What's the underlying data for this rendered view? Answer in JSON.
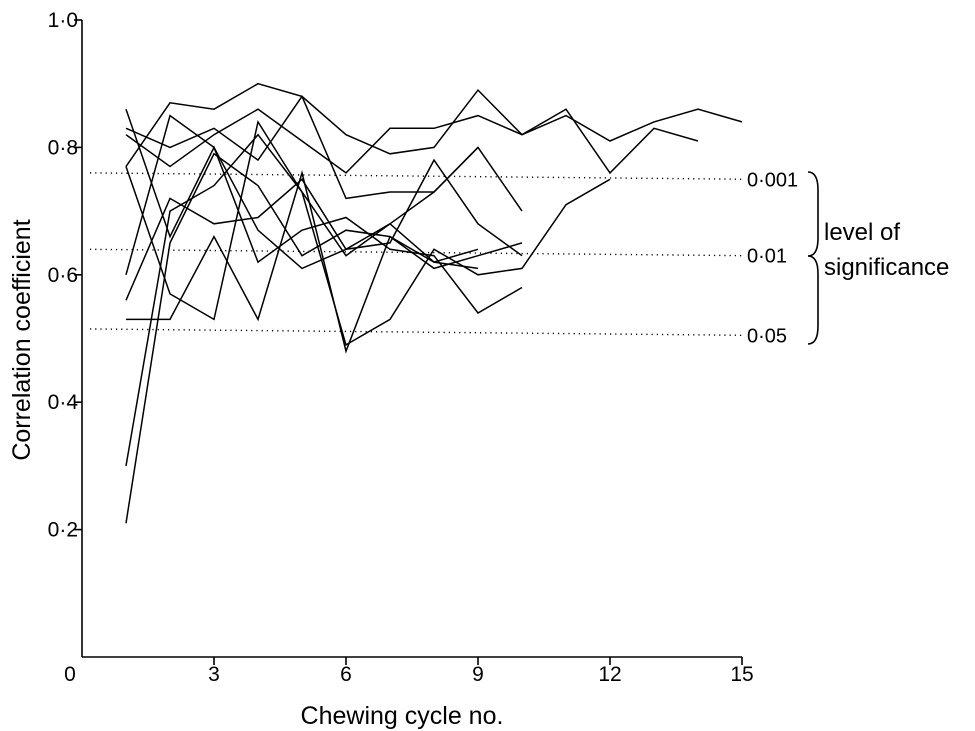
{
  "chart_data": {
    "type": "line",
    "title": "",
    "xlabel": "Chewing cycle no.",
    "ylabel": "Correlation coefficient",
    "xlim": [
      0,
      15
    ],
    "ylim": [
      0,
      1.0
    ],
    "x_ticks": [
      {
        "value": 0,
        "label": "0"
      },
      {
        "value": 3,
        "label": "3"
      },
      {
        "value": 6,
        "label": "6"
      },
      {
        "value": 9,
        "label": "9"
      },
      {
        "value": 12,
        "label": "12"
      },
      {
        "value": 15,
        "label": "15"
      }
    ],
    "y_ticks": [
      {
        "value": 0.2,
        "label": "0·2"
      },
      {
        "value": 0.4,
        "label": "0·4"
      },
      {
        "value": 0.6,
        "label": "0·6"
      },
      {
        "value": 0.8,
        "label": "0·8"
      },
      {
        "value": 1.0,
        "label": "1·0"
      }
    ],
    "significance_levels": [
      {
        "label": "0·001",
        "y_start": 0.76,
        "y_end": 0.75
      },
      {
        "label": "0·01",
        "y_start": 0.64,
        "y_end": 0.63
      },
      {
        "label": "0·05",
        "y_start": 0.515,
        "y_end": 0.505
      }
    ],
    "significance_title": [
      "level of",
      "significance"
    ],
    "series": [
      {
        "x": [
          1,
          2,
          3,
          4,
          5,
          6,
          7,
          8,
          9,
          10,
          11,
          12,
          13,
          14,
          15
        ],
        "values": [
          0.82,
          0.77,
          0.82,
          0.86,
          0.81,
          0.76,
          0.83,
          0.83,
          0.85,
          0.82,
          0.85,
          0.81,
          0.84,
          0.86,
          0.84
        ]
      },
      {
        "x": [
          1,
          2,
          3,
          4,
          5,
          6,
          7,
          8,
          9,
          10,
          11,
          12,
          13,
          14
        ],
        "values": [
          0.83,
          0.8,
          0.83,
          0.78,
          0.88,
          0.82,
          0.79,
          0.8,
          0.89,
          0.82,
          0.86,
          0.76,
          0.83,
          0.81
        ]
      },
      {
        "x": [
          1,
          2,
          3,
          4,
          5,
          6,
          7,
          8,
          9,
          10
        ],
        "values": [
          0.86,
          0.66,
          0.8,
          0.62,
          0.67,
          0.69,
          0.64,
          0.63,
          0.54,
          0.58
        ]
      },
      {
        "x": [
          1,
          2,
          3,
          4,
          5,
          6,
          7,
          8,
          9,
          10
        ],
        "values": [
          0.56,
          0.72,
          0.68,
          0.69,
          0.75,
          0.64,
          0.65,
          0.78,
          0.68,
          0.63
        ]
      },
      {
        "x": [
          1,
          2,
          3,
          4,
          5,
          6,
          7,
          8,
          9
        ],
        "values": [
          0.6,
          0.85,
          0.8,
          0.67,
          0.61,
          0.64,
          0.68,
          0.73,
          0.8
        ]
      },
      {
        "x": [
          1,
          2,
          3,
          4,
          5,
          6,
          7,
          8,
          9,
          10
        ],
        "values": [
          0.77,
          0.87,
          0.86,
          0.9,
          0.88,
          0.72,
          0.73,
          0.73,
          0.8,
          0.7
        ]
      },
      {
        "x": [
          1,
          2,
          3,
          4,
          5,
          6,
          7,
          8,
          9,
          10,
          11,
          12
        ],
        "values": [
          0.77,
          0.57,
          0.53,
          0.84,
          0.73,
          0.49,
          0.53,
          0.64,
          0.6,
          0.61,
          0.71,
          0.75
        ]
      },
      {
        "x": [
          1,
          2,
          3,
          4,
          5,
          6,
          7,
          8,
          9
        ],
        "values": [
          0.53,
          0.53,
          0.66,
          0.53,
          0.76,
          0.48,
          0.66,
          0.62,
          0.61
        ]
      },
      {
        "x": [
          1,
          2,
          3,
          4,
          5,
          6,
          7,
          8,
          9
        ],
        "values": [
          0.3,
          0.7,
          0.74,
          0.82,
          0.73,
          0.63,
          0.68,
          0.62,
          0.64
        ]
      },
      {
        "x": [
          1,
          2,
          3,
          4,
          5,
          6,
          7,
          8,
          9,
          10
        ],
        "values": [
          0.21,
          0.65,
          0.79,
          0.74,
          0.63,
          0.67,
          0.66,
          0.61,
          0.63,
          0.65
        ]
      }
    ]
  }
}
